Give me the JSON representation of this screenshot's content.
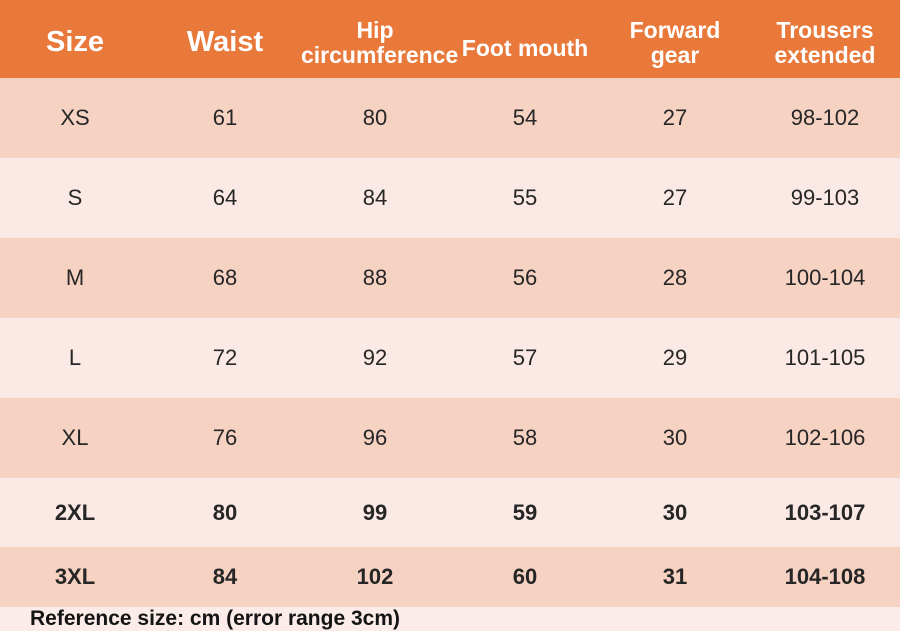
{
  "chart_data": {
    "type": "table",
    "columns": [
      "Size",
      "Waist",
      "Hip circumference",
      "Foot mouth",
      "Forward gear",
      "Trousers extended"
    ],
    "rows": [
      [
        "XS",
        "61",
        "80",
        "54",
        "27",
        "98-102"
      ],
      [
        "S",
        "64",
        "84",
        "55",
        "27",
        "99-103"
      ],
      [
        "M",
        "68",
        "88",
        "56",
        "28",
        "100-104"
      ],
      [
        "L",
        "72",
        "92",
        "57",
        "29",
        "101-105"
      ],
      [
        "XL",
        "76",
        "96",
        "58",
        "30",
        "102-106"
      ],
      [
        "2XL",
        "80",
        "99",
        "59",
        "30",
        "103-107"
      ],
      [
        "3XL",
        "84",
        "102",
        "60",
        "31",
        "104-108"
      ]
    ],
    "note": "Reference size: cm (error range 3cm)",
    "layout_hints": {
      "header_position": "top",
      "row_striping": "alternating starting dark",
      "units": "cm"
    }
  },
  "colors": {
    "header_bg": "#E8793B",
    "row_dark": "#F6D2C3",
    "row_light": "#FBE9E5",
    "footer_bg": "#FCECE9",
    "header_text": "#FFFFFF",
    "body_text": "#262626"
  }
}
